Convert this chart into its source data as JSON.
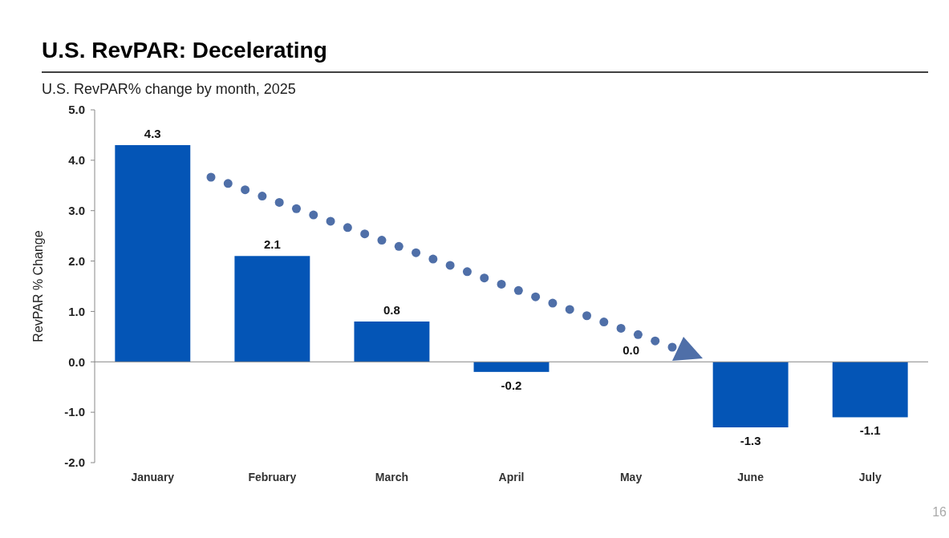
{
  "chart_data": {
    "type": "bar",
    "title": "U.S. RevPAR: Decelerating",
    "subtitle": "U.S. RevPAR% change by month, 2025",
    "ylabel": "RevPAR % Change",
    "categories": [
      "January",
      "February",
      "March",
      "April",
      "May",
      "June",
      "July"
    ],
    "values": [
      4.3,
      2.1,
      0.8,
      -0.2,
      0.0,
      -1.3,
      -1.1
    ],
    "value_labels": [
      "4.3",
      "2.1",
      "0.8",
      "-0.2",
      "0.0",
      "-1.3",
      "-1.1"
    ],
    "color": "#0455b6",
    "ylim": [
      -2,
      5
    ],
    "yticks": [
      {
        "value": -2,
        "label": "-2.0"
      },
      {
        "value": -1,
        "label": "-1.0"
      },
      {
        "value": 0,
        "label": "0.0"
      },
      {
        "value": 1,
        "label": "1.0"
      },
      {
        "value": 2,
        "label": "2.0"
      },
      {
        "value": 3,
        "label": "3.0"
      },
      {
        "value": 4,
        "label": "4.0"
      },
      {
        "value": 5,
        "label": "5.0"
      }
    ],
    "grid": false,
    "ref_lines": [
      {
        "axis": "y",
        "value": 0,
        "color": "#888888"
      }
    ],
    "annotations": [
      "16"
    ]
  }
}
